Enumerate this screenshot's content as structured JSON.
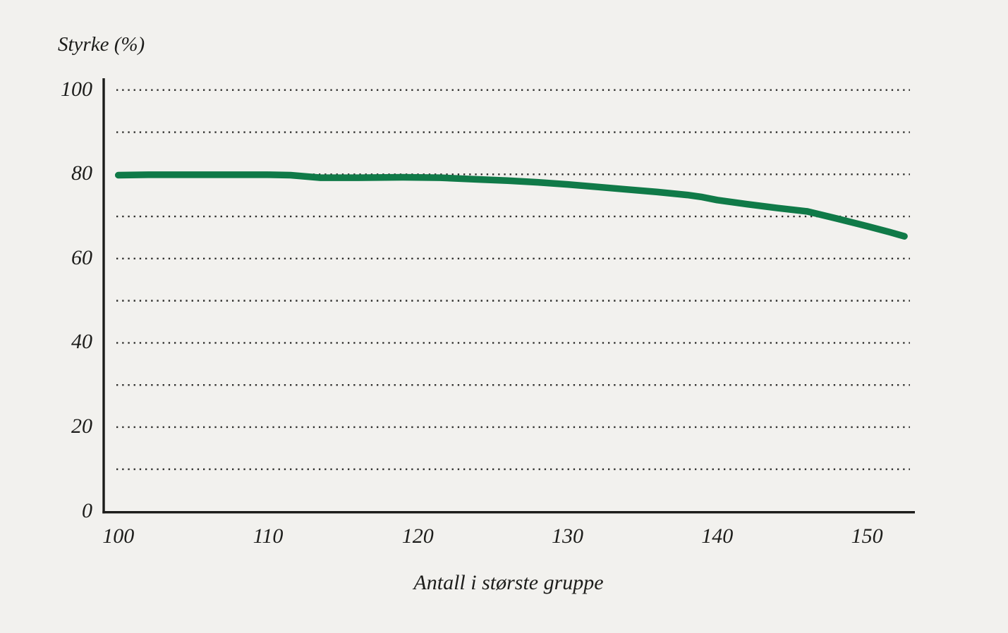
{
  "chart_data": {
    "type": "line",
    "title": "",
    "ylabel": "Styrke (%)",
    "xlabel": "Antall i største gruppe",
    "x_ticks": [
      100,
      110,
      120,
      130,
      140,
      150
    ],
    "y_ticks": [
      0,
      20,
      40,
      60,
      80,
      100
    ],
    "gridline_values": [
      10,
      20,
      30,
      40,
      50,
      60,
      70,
      80,
      90,
      100
    ],
    "xlim": [
      99,
      153.2
    ],
    "ylim": [
      0,
      102.8
    ],
    "grid": "horizontal-dotted",
    "legend_position": "none",
    "line_color": "#107a48",
    "grid_color": "#2c2c2a",
    "axis_color": "#1c1c1a",
    "background_color": "#f2f1ee",
    "text_color": "#1d1d1b",
    "series": [
      {
        "name": "Styrke",
        "x": [
          100,
          102,
          104,
          106,
          108,
          110,
          111.5,
          113.5,
          116,
          119,
          121.5,
          124,
          126,
          128,
          130,
          132,
          134,
          136,
          138,
          139,
          140,
          142,
          144,
          146,
          148,
          150,
          151.5,
          152.5
        ],
        "y": [
          79.8,
          79.9,
          79.9,
          79.9,
          79.9,
          79.9,
          79.8,
          79.2,
          79.2,
          79.3,
          79.2,
          78.8,
          78.5,
          78.1,
          77.6,
          77.0,
          76.4,
          75.8,
          75.1,
          74.6,
          73.9,
          72.9,
          72.0,
          71.2,
          69.5,
          67.7,
          66.3,
          65.3
        ]
      }
    ]
  }
}
